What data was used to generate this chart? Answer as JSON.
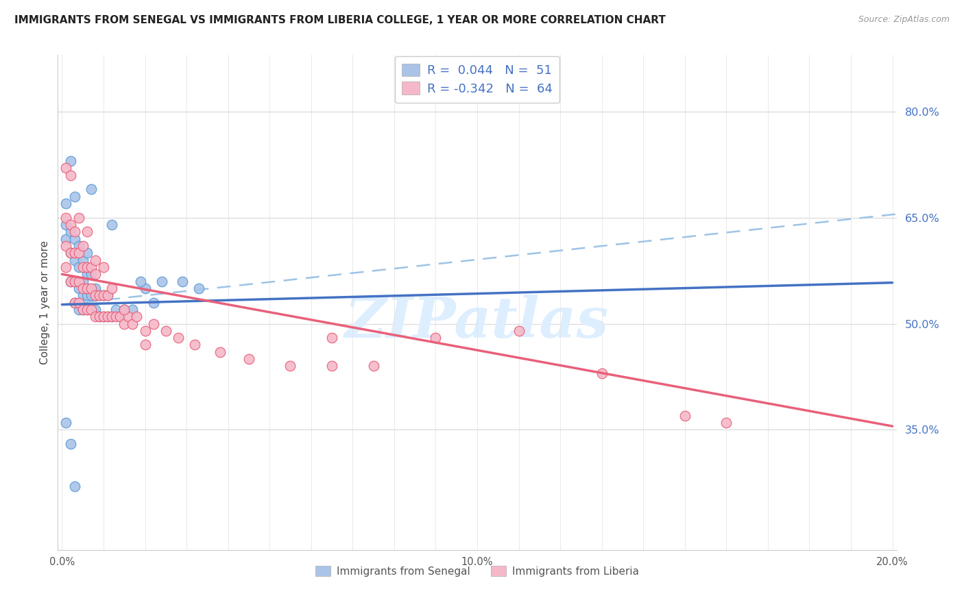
{
  "title": "IMMIGRANTS FROM SENEGAL VS IMMIGRANTS FROM LIBERIA COLLEGE, 1 YEAR OR MORE CORRELATION CHART",
  "source": "Source: ZipAtlas.com",
  "ylabel": "College, 1 year or more",
  "xlim": [
    -0.001,
    0.201
  ],
  "ylim": [
    0.18,
    0.88
  ],
  "ytick_vals_right": [
    0.8,
    0.65,
    0.5,
    0.35
  ],
  "ytick_labels_right": [
    "80.0%",
    "65.0%",
    "50.0%",
    "35.0%"
  ],
  "legend_R1": "0.044",
  "legend_N1": "51",
  "legend_R2": "-0.342",
  "legend_N2": "64",
  "senegal_color": "#aac4e8",
  "liberia_color": "#f5b8c8",
  "senegal_edge": "#5b9bd5",
  "liberia_edge": "#e8607a",
  "trend_senegal_color": "#4472c4",
  "trend_liberia_color": "#e8607a",
  "dashed_color": "#9dc3e6",
  "watermark": "ZIPatlas",
  "watermark_color": "#ddeeff",
  "background_color": "#ffffff",
  "senegal_x": [
    0.001,
    0.001,
    0.001,
    0.002,
    0.002,
    0.002,
    0.003,
    0.003,
    0.003,
    0.003,
    0.004,
    0.004,
    0.004,
    0.004,
    0.005,
    0.005,
    0.005,
    0.005,
    0.006,
    0.006,
    0.006,
    0.006,
    0.007,
    0.007,
    0.007,
    0.008,
    0.008,
    0.009,
    0.009,
    0.01,
    0.01,
    0.011,
    0.011,
    0.012,
    0.013,
    0.014,
    0.015,
    0.017,
    0.02,
    0.022,
    0.024,
    0.029,
    0.033,
    0.001,
    0.002,
    0.003,
    0.019,
    0.003,
    0.007,
    0.012,
    0.002
  ],
  "senegal_y": [
    0.62,
    0.64,
    0.67,
    0.56,
    0.6,
    0.63,
    0.53,
    0.56,
    0.59,
    0.62,
    0.52,
    0.55,
    0.58,
    0.61,
    0.52,
    0.54,
    0.56,
    0.59,
    0.52,
    0.54,
    0.57,
    0.6,
    0.52,
    0.54,
    0.57,
    0.52,
    0.55,
    0.51,
    0.54,
    0.51,
    0.54,
    0.51,
    0.54,
    0.51,
    0.52,
    0.51,
    0.52,
    0.52,
    0.55,
    0.53,
    0.56,
    0.56,
    0.55,
    0.36,
    0.33,
    0.27,
    0.56,
    0.68,
    0.69,
    0.64,
    0.73
  ],
  "liberia_x": [
    0.001,
    0.001,
    0.001,
    0.002,
    0.002,
    0.002,
    0.003,
    0.003,
    0.003,
    0.004,
    0.004,
    0.004,
    0.005,
    0.005,
    0.005,
    0.006,
    0.006,
    0.006,
    0.007,
    0.007,
    0.007,
    0.008,
    0.008,
    0.008,
    0.009,
    0.009,
    0.01,
    0.01,
    0.011,
    0.011,
    0.012,
    0.013,
    0.014,
    0.015,
    0.016,
    0.017,
    0.018,
    0.02,
    0.022,
    0.025,
    0.028,
    0.032,
    0.038,
    0.045,
    0.055,
    0.065,
    0.075,
    0.09,
    0.11,
    0.13,
    0.15,
    0.001,
    0.002,
    0.003,
    0.004,
    0.005,
    0.006,
    0.008,
    0.01,
    0.012,
    0.015,
    0.02,
    0.065,
    0.16
  ],
  "liberia_y": [
    0.58,
    0.61,
    0.65,
    0.56,
    0.6,
    0.64,
    0.53,
    0.56,
    0.6,
    0.53,
    0.56,
    0.6,
    0.52,
    0.55,
    0.58,
    0.52,
    0.55,
    0.58,
    0.52,
    0.55,
    0.58,
    0.51,
    0.54,
    0.57,
    0.51,
    0.54,
    0.51,
    0.54,
    0.51,
    0.54,
    0.51,
    0.51,
    0.51,
    0.5,
    0.51,
    0.5,
    0.51,
    0.49,
    0.5,
    0.49,
    0.48,
    0.47,
    0.46,
    0.45,
    0.44,
    0.44,
    0.44,
    0.48,
    0.49,
    0.43,
    0.37,
    0.72,
    0.71,
    0.63,
    0.65,
    0.61,
    0.63,
    0.59,
    0.58,
    0.55,
    0.52,
    0.47,
    0.48,
    0.36
  ],
  "sen_line_x0": 0.0,
  "sen_line_x1": 0.2,
  "sen_line_y0": 0.527,
  "sen_line_y1": 0.558,
  "lib_line_x0": 0.0,
  "lib_line_x1": 0.2,
  "lib_line_y0": 0.57,
  "lib_line_y1": 0.355,
  "dash_line_x0": 0.0,
  "dash_line_x1": 0.201,
  "dash_line_y0": 0.527,
  "dash_line_y1": 0.655
}
